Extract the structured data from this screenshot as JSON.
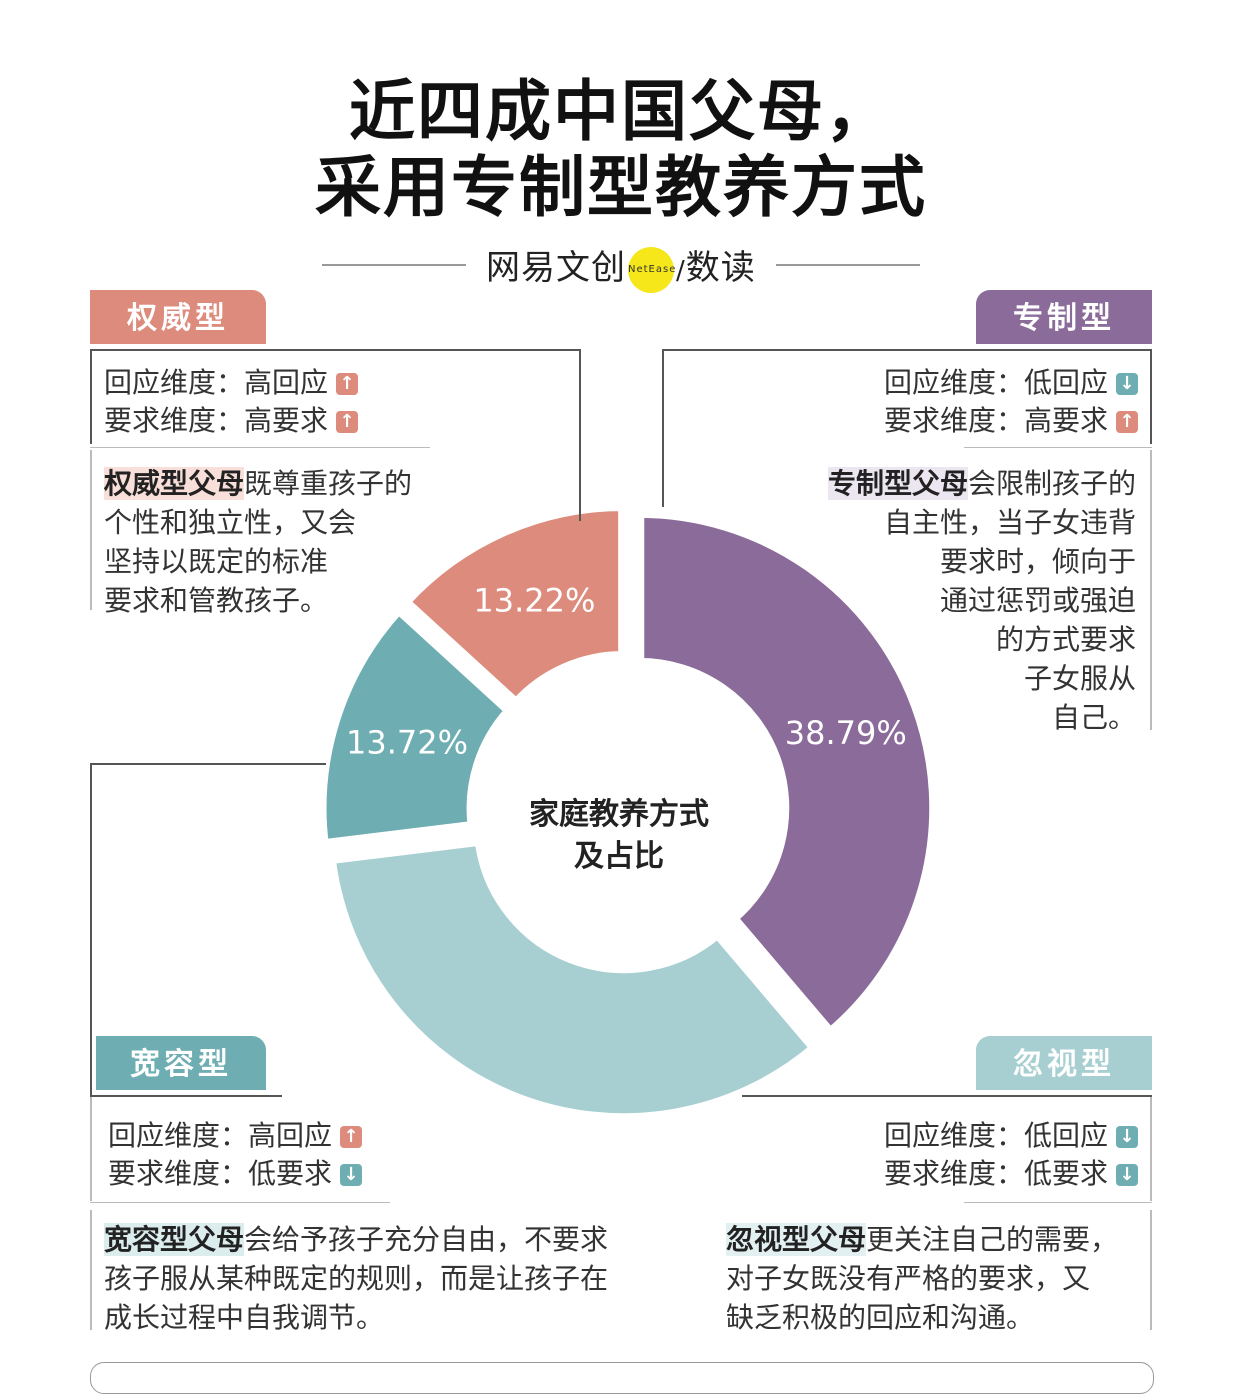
{
  "title": {
    "line1": "近四成中国父母，",
    "line2": "采用专制型教养方式"
  },
  "brand": {
    "name": "网易文创",
    "logo_text": "NetEase",
    "sep": "/",
    "sub": "数读"
  },
  "chart_data": {
    "type": "pie",
    "title": "家庭教养方式及占比",
    "center_label_line1": "家庭教养方式",
    "center_label_line2": "及占比",
    "slices": [
      {
        "name": "专制型",
        "value": 38.79,
        "label": "38.79%",
        "color": "#8b6b99"
      },
      {
        "name": "忽视型",
        "value": 34.27,
        "label": "",
        "color": "#a7cfd1"
      },
      {
        "name": "宽容型",
        "value": 13.72,
        "label": "13.72%",
        "color": "#6eaeb2"
      },
      {
        "name": "权威型",
        "value": 13.22,
        "label": "13.22%",
        "color": "#dc8b7c"
      }
    ]
  },
  "types": {
    "authoritative": {
      "tag": "权威型",
      "resp_label": "回应维度：",
      "resp_value": "高回应",
      "resp_dir": "up",
      "req_label": "要求维度：",
      "req_value": "高要求",
      "req_dir": "up",
      "highlight": "权威型父母",
      "desc_1": "既尊重孩子的",
      "desc_2": "个性和独立性，又会",
      "desc_3": "坚持以既定的标准",
      "desc_4": "要求和管教孩子。"
    },
    "authoritarian": {
      "tag": "专制型",
      "resp_label": "回应维度：",
      "resp_value": "低回应",
      "resp_dir": "down",
      "req_label": "要求维度：",
      "req_value": "高要求",
      "req_dir": "up",
      "highlight": "专制型父母",
      "desc_1": "会限制孩子的",
      "desc_2": "自主性，当子女违背",
      "desc_3": "要求时，倾向于",
      "desc_4": "通过惩罚或强迫",
      "desc_5": "的方式要求",
      "desc_6": "子女服从",
      "desc_7": "自己。"
    },
    "permissive": {
      "tag": "宽容型",
      "resp_label": "回应维度：",
      "resp_value": "高回应",
      "resp_dir": "up",
      "req_label": "要求维度：",
      "req_value": "低要求",
      "req_dir": "down",
      "highlight": "宽容型父母",
      "desc_1": "会给予孩子充分自由，不要求",
      "desc_2": "孩子服从某种既定的规则，而是让孩子在",
      "desc_3": "成长过程中自我调节。"
    },
    "neglectful": {
      "tag": "忽视型",
      "resp_label": "回应维度：",
      "resp_value": "低回应",
      "resp_dir": "down",
      "req_label": "要求维度：",
      "req_value": "低要求",
      "req_dir": "down",
      "highlight": "忽视型父母",
      "desc_1": "更关注自己的需要，",
      "desc_2": "对子女既没有严格的要求，又",
      "desc_3": "缺乏积极的回应和沟通。"
    }
  },
  "arrows": {
    "up": "↑",
    "down": "↓"
  }
}
